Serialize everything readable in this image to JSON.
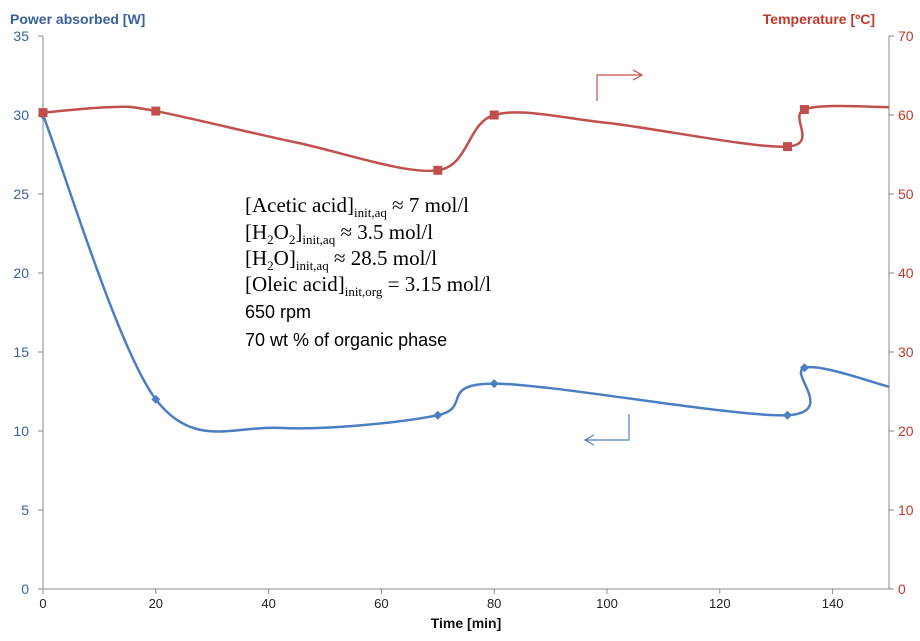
{
  "chart_data": {
    "type": "line",
    "x_axis": {
      "title": "Time [min]",
      "range": [
        0,
        150
      ],
      "ticks": [
        "0",
        "20",
        "40",
        "60",
        "80",
        "100",
        "120",
        "140"
      ]
    },
    "y_axis_left": {
      "title": "Power absorbed [W]",
      "range": [
        0,
        35
      ],
      "ticks": [
        "0",
        "5",
        "10",
        "15",
        "20",
        "25",
        "30",
        "35"
      ],
      "color": "#3a5f9e"
    },
    "y_axis_right": {
      "title": "Temperature [ºC]",
      "range": [
        0,
        70
      ],
      "ticks": [
        "0",
        "10",
        "20",
        "30",
        "40",
        "50",
        "60",
        "70"
      ],
      "color": "#c0392b"
    },
    "grid": false,
    "series": [
      {
        "axis": "left",
        "color": "#4a7ec2",
        "marker": "diamond",
        "x": [
          0,
          20,
          42,
          70,
          80,
          132,
          135,
          150
        ],
        "y": [
          30,
          12,
          10.2,
          11,
          13,
          11,
          14,
          12.8
        ],
        "marked": [
          true,
          true,
          false,
          true,
          true,
          true,
          true,
          false
        ]
      },
      {
        "axis": "right",
        "color": "#c0504d",
        "marker": "square",
        "x": [
          0,
          12,
          20,
          45,
          70,
          80,
          100,
          132,
          135,
          150
        ],
        "y": [
          60.3,
          61,
          60.5,
          56.5,
          53,
          60,
          59,
          56,
          60.7,
          61
        ],
        "marked": [
          true,
          false,
          true,
          false,
          true,
          true,
          false,
          true,
          true,
          false
        ]
      }
    ],
    "annotations": {
      "line1_a": "[Acetic acid]",
      "line1_sub": "init,aq",
      "line1_b": " ≈  7 mol/l",
      "line2_a": "[H",
      "line2_s2": "2",
      "line2_b": "O",
      "line2_s2b": "2",
      "line2_c": "]",
      "line2_sub": "init,aq",
      "line2_d": " ≈ 3.5 mol/l",
      "line3_a": "[H",
      "line3_s2": "2",
      "line3_b": "O]",
      "line3_sub": "init,aq",
      "line3_c": " ≈ 28.5 mol/l",
      "line4_a": "[Oleic acid]",
      "line4_sub": "init,org",
      "line4_b": " = 3.15 mol/l",
      "line5": "650 rpm",
      "line6": "70 wt % of organic phase"
    }
  }
}
